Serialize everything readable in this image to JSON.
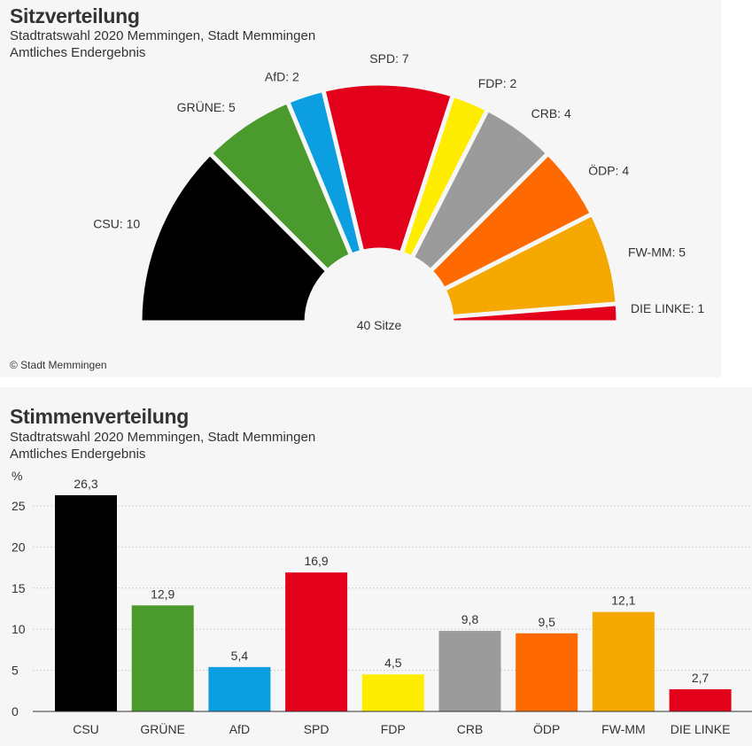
{
  "chart_data": [
    {
      "type": "pie",
      "subtype": "semicircle-parliament",
      "title": "Sitzverteilung",
      "subtitle": "Stadtratswahl 2020 Memmingen, Stadt Memmingen",
      "subtitle2": "Amtliches Endergebnis",
      "center_label": "40 Sitze",
      "credit": "© Stadt Memmingen",
      "categories": [
        "CSU",
        "GRÜNE",
        "AfD",
        "SPD",
        "FDP",
        "CRB",
        "ÖDP",
        "FW-MM",
        "DIE LINKE"
      ],
      "values": [
        10,
        5,
        2,
        7,
        2,
        4,
        4,
        5,
        1
      ],
      "labels": [
        "CSU: 10",
        "GRÜNE: 5",
        "AfD: 2",
        "SPD: 7",
        "FDP: 2",
        "CRB: 4",
        "ÖDP: 4",
        "FW-MM: 5",
        "DIE LINKE: 1"
      ],
      "colors": [
        "#000000",
        "#4a9a2e",
        "#0b9ee0",
        "#e2001a",
        "#ffed00",
        "#9b9b9b",
        "#ff6a00",
        "#f5a800",
        "#e2001a"
      ]
    },
    {
      "type": "bar",
      "title": "Stimmenverteilung",
      "subtitle": "Stadtratswahl 2020 Memmingen, Stadt Memmingen",
      "subtitle2": "Amtliches Endergebnis",
      "ylabel": "%",
      "ylim": [
        0,
        28.5
      ],
      "yticks": [
        0,
        5,
        10,
        15,
        20,
        25
      ],
      "grid": true,
      "categories": [
        "CSU",
        "GRÜNE",
        "AfD",
        "SPD",
        "FDP",
        "CRB",
        "ÖDP",
        "FW-MM",
        "DIE LINKE"
      ],
      "values": [
        26.3,
        12.9,
        5.4,
        16.9,
        4.5,
        9.8,
        9.5,
        12.1,
        2.7
      ],
      "value_labels": [
        "26,3",
        "12,9",
        "5,4",
        "16,9",
        "4,5",
        "9,8",
        "9,5",
        "12,1",
        "2,7"
      ],
      "colors": [
        "#000000",
        "#4a9a2e",
        "#0b9ee0",
        "#e2001a",
        "#ffed00",
        "#9b9b9b",
        "#ff6a00",
        "#f5a800",
        "#e2001a"
      ]
    }
  ]
}
